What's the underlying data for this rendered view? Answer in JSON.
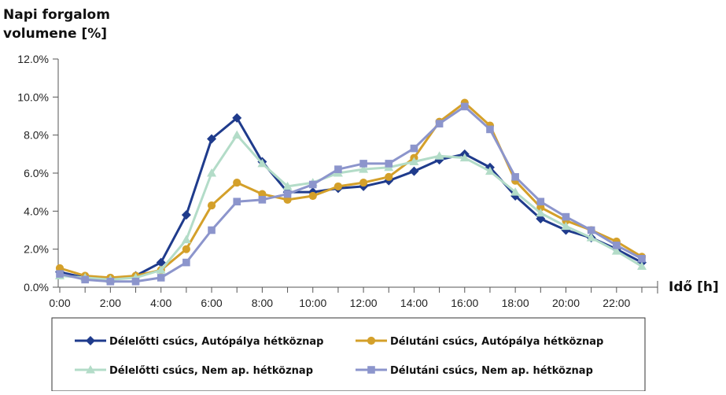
{
  "chart_data": {
    "type": "line",
    "ylabel_line1": "Napi forgalom",
    "ylabel_line2": "volumene [%]",
    "xlabel": "Idő [h]",
    "ylim": [
      0,
      12
    ],
    "y_ticks": [
      "0.0%",
      "2.0%",
      "4.0%",
      "6.0%",
      "8.0%",
      "10.0%",
      "12.0%"
    ],
    "x_tick_labels": [
      "0:00",
      "2:00",
      "4:00",
      "6:00",
      "8:00",
      "10:00",
      "12:00",
      "14:00",
      "16:00",
      "18:00",
      "20:00",
      "22:00"
    ],
    "x": [
      0,
      1,
      2,
      3,
      4,
      5,
      6,
      7,
      8,
      9,
      10,
      11,
      12,
      13,
      14,
      15,
      16,
      17,
      18,
      19,
      20,
      21,
      22,
      23
    ],
    "grid": false,
    "legend_position": "bottom",
    "series": [
      {
        "name": "Délelőtti csúcs, Autópálya hétköznap",
        "color": "#1f3b8c",
        "marker": "diamond",
        "values": [
          0.8,
          0.5,
          0.4,
          0.6,
          1.3,
          3.8,
          7.8,
          8.9,
          6.6,
          5.0,
          5.0,
          5.2,
          5.3,
          5.6,
          6.1,
          6.7,
          7.0,
          6.3,
          4.8,
          3.6,
          3.0,
          2.6,
          2.0,
          1.3
        ]
      },
      {
        "name": "Délutáni csúcs, Autópálya hétköznap",
        "color": "#d4a02a",
        "marker": "circle",
        "values": [
          1.0,
          0.6,
          0.5,
          0.6,
          0.9,
          2.0,
          4.3,
          5.5,
          4.9,
          4.6,
          4.8,
          5.3,
          5.5,
          5.8,
          6.8,
          8.7,
          9.7,
          8.5,
          5.6,
          4.2,
          3.5,
          3.0,
          2.4,
          1.6
        ]
      },
      {
        "name": "Délelőtti csúcs, Nem ap. hétköznap",
        "color": "#b3dcc8",
        "marker": "triangle",
        "values": [
          0.6,
          0.5,
          0.4,
          0.5,
          0.9,
          2.5,
          6.0,
          8.0,
          6.5,
          5.3,
          5.5,
          6.0,
          6.2,
          6.3,
          6.6,
          6.9,
          6.8,
          6.1,
          5.0,
          3.9,
          3.2,
          2.6,
          1.9,
          1.1
        ]
      },
      {
        "name": "Délutáni csúcs, Nem ap. hétköznap",
        "color": "#8c95cc",
        "marker": "square",
        "values": [
          0.7,
          0.4,
          0.3,
          0.3,
          0.5,
          1.3,
          3.0,
          4.5,
          4.6,
          4.9,
          5.4,
          6.2,
          6.5,
          6.5,
          7.3,
          8.6,
          9.5,
          8.3,
          5.8,
          4.5,
          3.7,
          3.0,
          2.2,
          1.5
        ]
      }
    ]
  }
}
